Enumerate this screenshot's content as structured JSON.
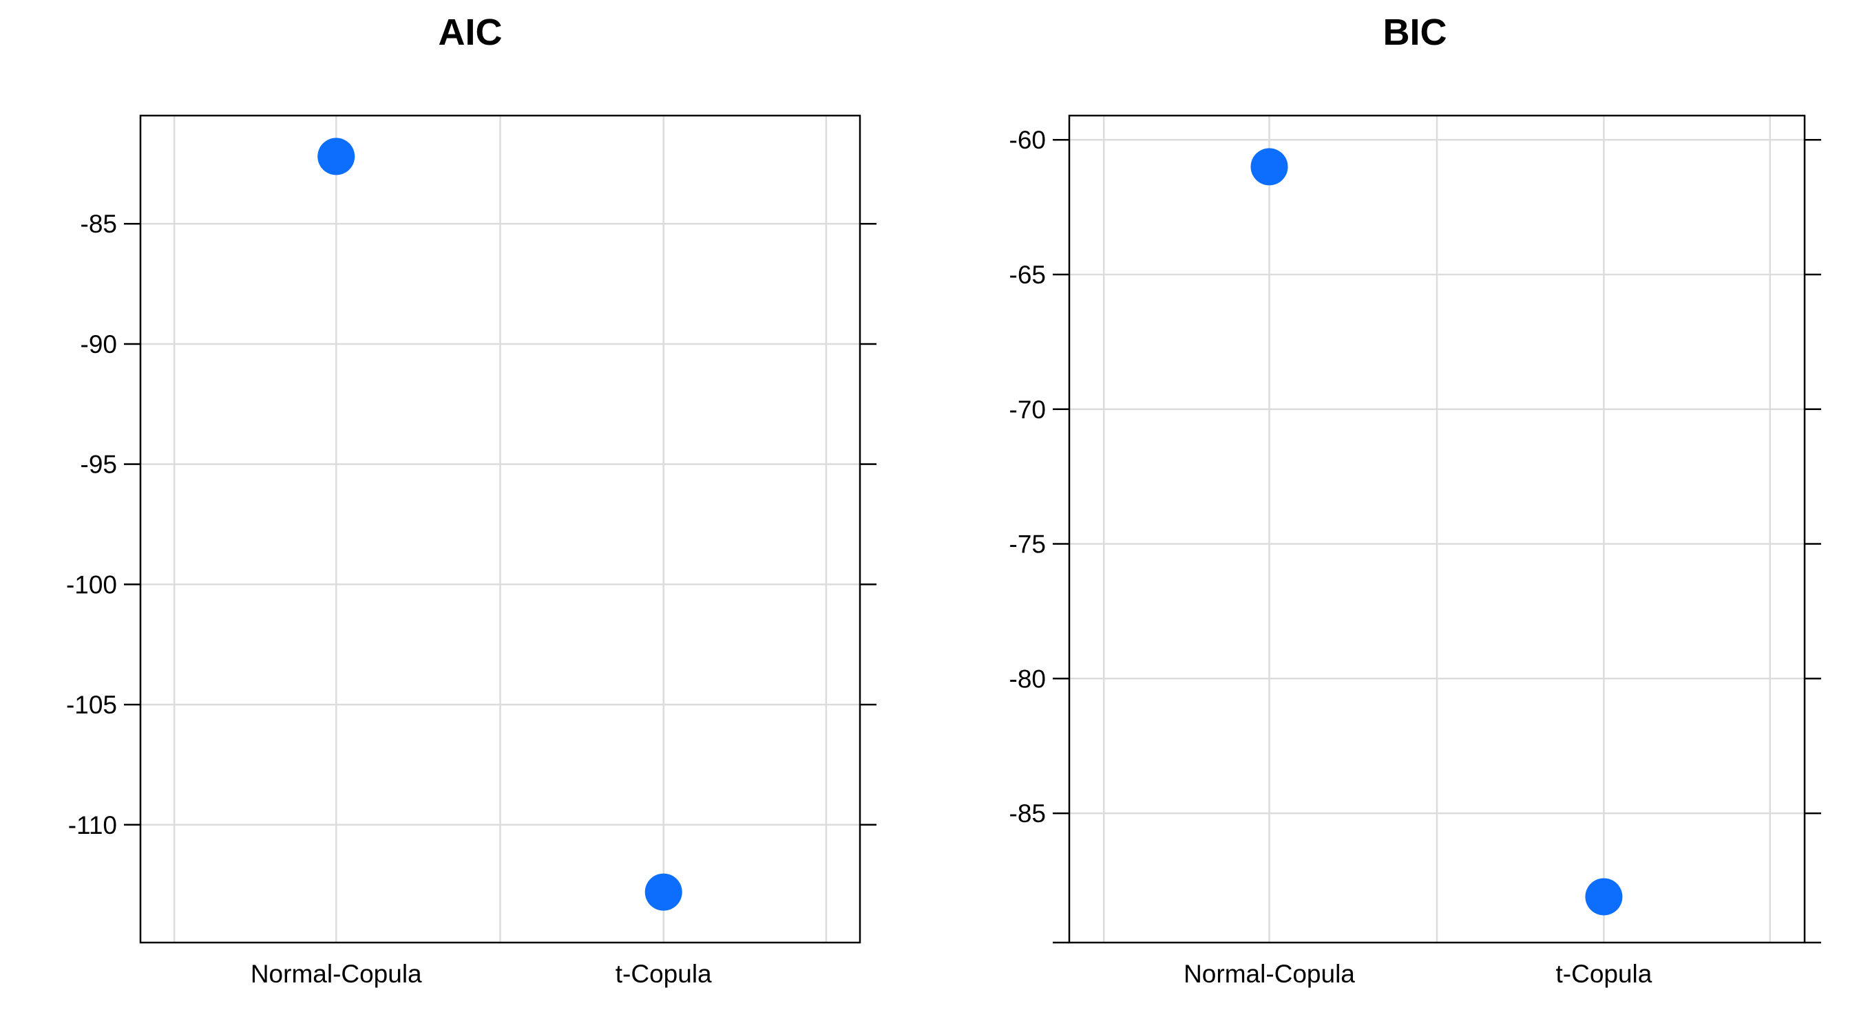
{
  "chart_data": [
    {
      "type": "scatter",
      "title": "AIC",
      "categories": [
        "Normal-Copula",
        "t-Copula"
      ],
      "values": [
        -82.2,
        -112.8
      ],
      "ylim": [
        -114.9,
        -80.5
      ],
      "yticks": [
        -85,
        -90,
        -95,
        -100,
        -105,
        -110
      ],
      "ytick_labels": [
        "-85",
        "-90",
        "-95",
        "-100",
        "-105",
        "-110"
      ],
      "xlabel": "",
      "ylabel": "",
      "grid": true,
      "legend": "none",
      "marker_color": "#0d6efd"
    },
    {
      "type": "scatter",
      "title": "BIC",
      "categories": [
        "Normal-Copula",
        "t-Copula"
      ],
      "values": [
        -61.0,
        -88.1
      ],
      "ylim": [
        -89.8,
        -59.1
      ],
      "yticks": [
        -60,
        -65,
        -70,
        -75,
        -80,
        -85
      ],
      "ytick_labels": [
        "-60",
        "-65",
        "-70",
        "-75",
        "-80",
        "-85"
      ],
      "xlabel": "",
      "ylabel": "",
      "grid": true,
      "legend": "none",
      "marker_color": "#0d6efd"
    }
  ]
}
